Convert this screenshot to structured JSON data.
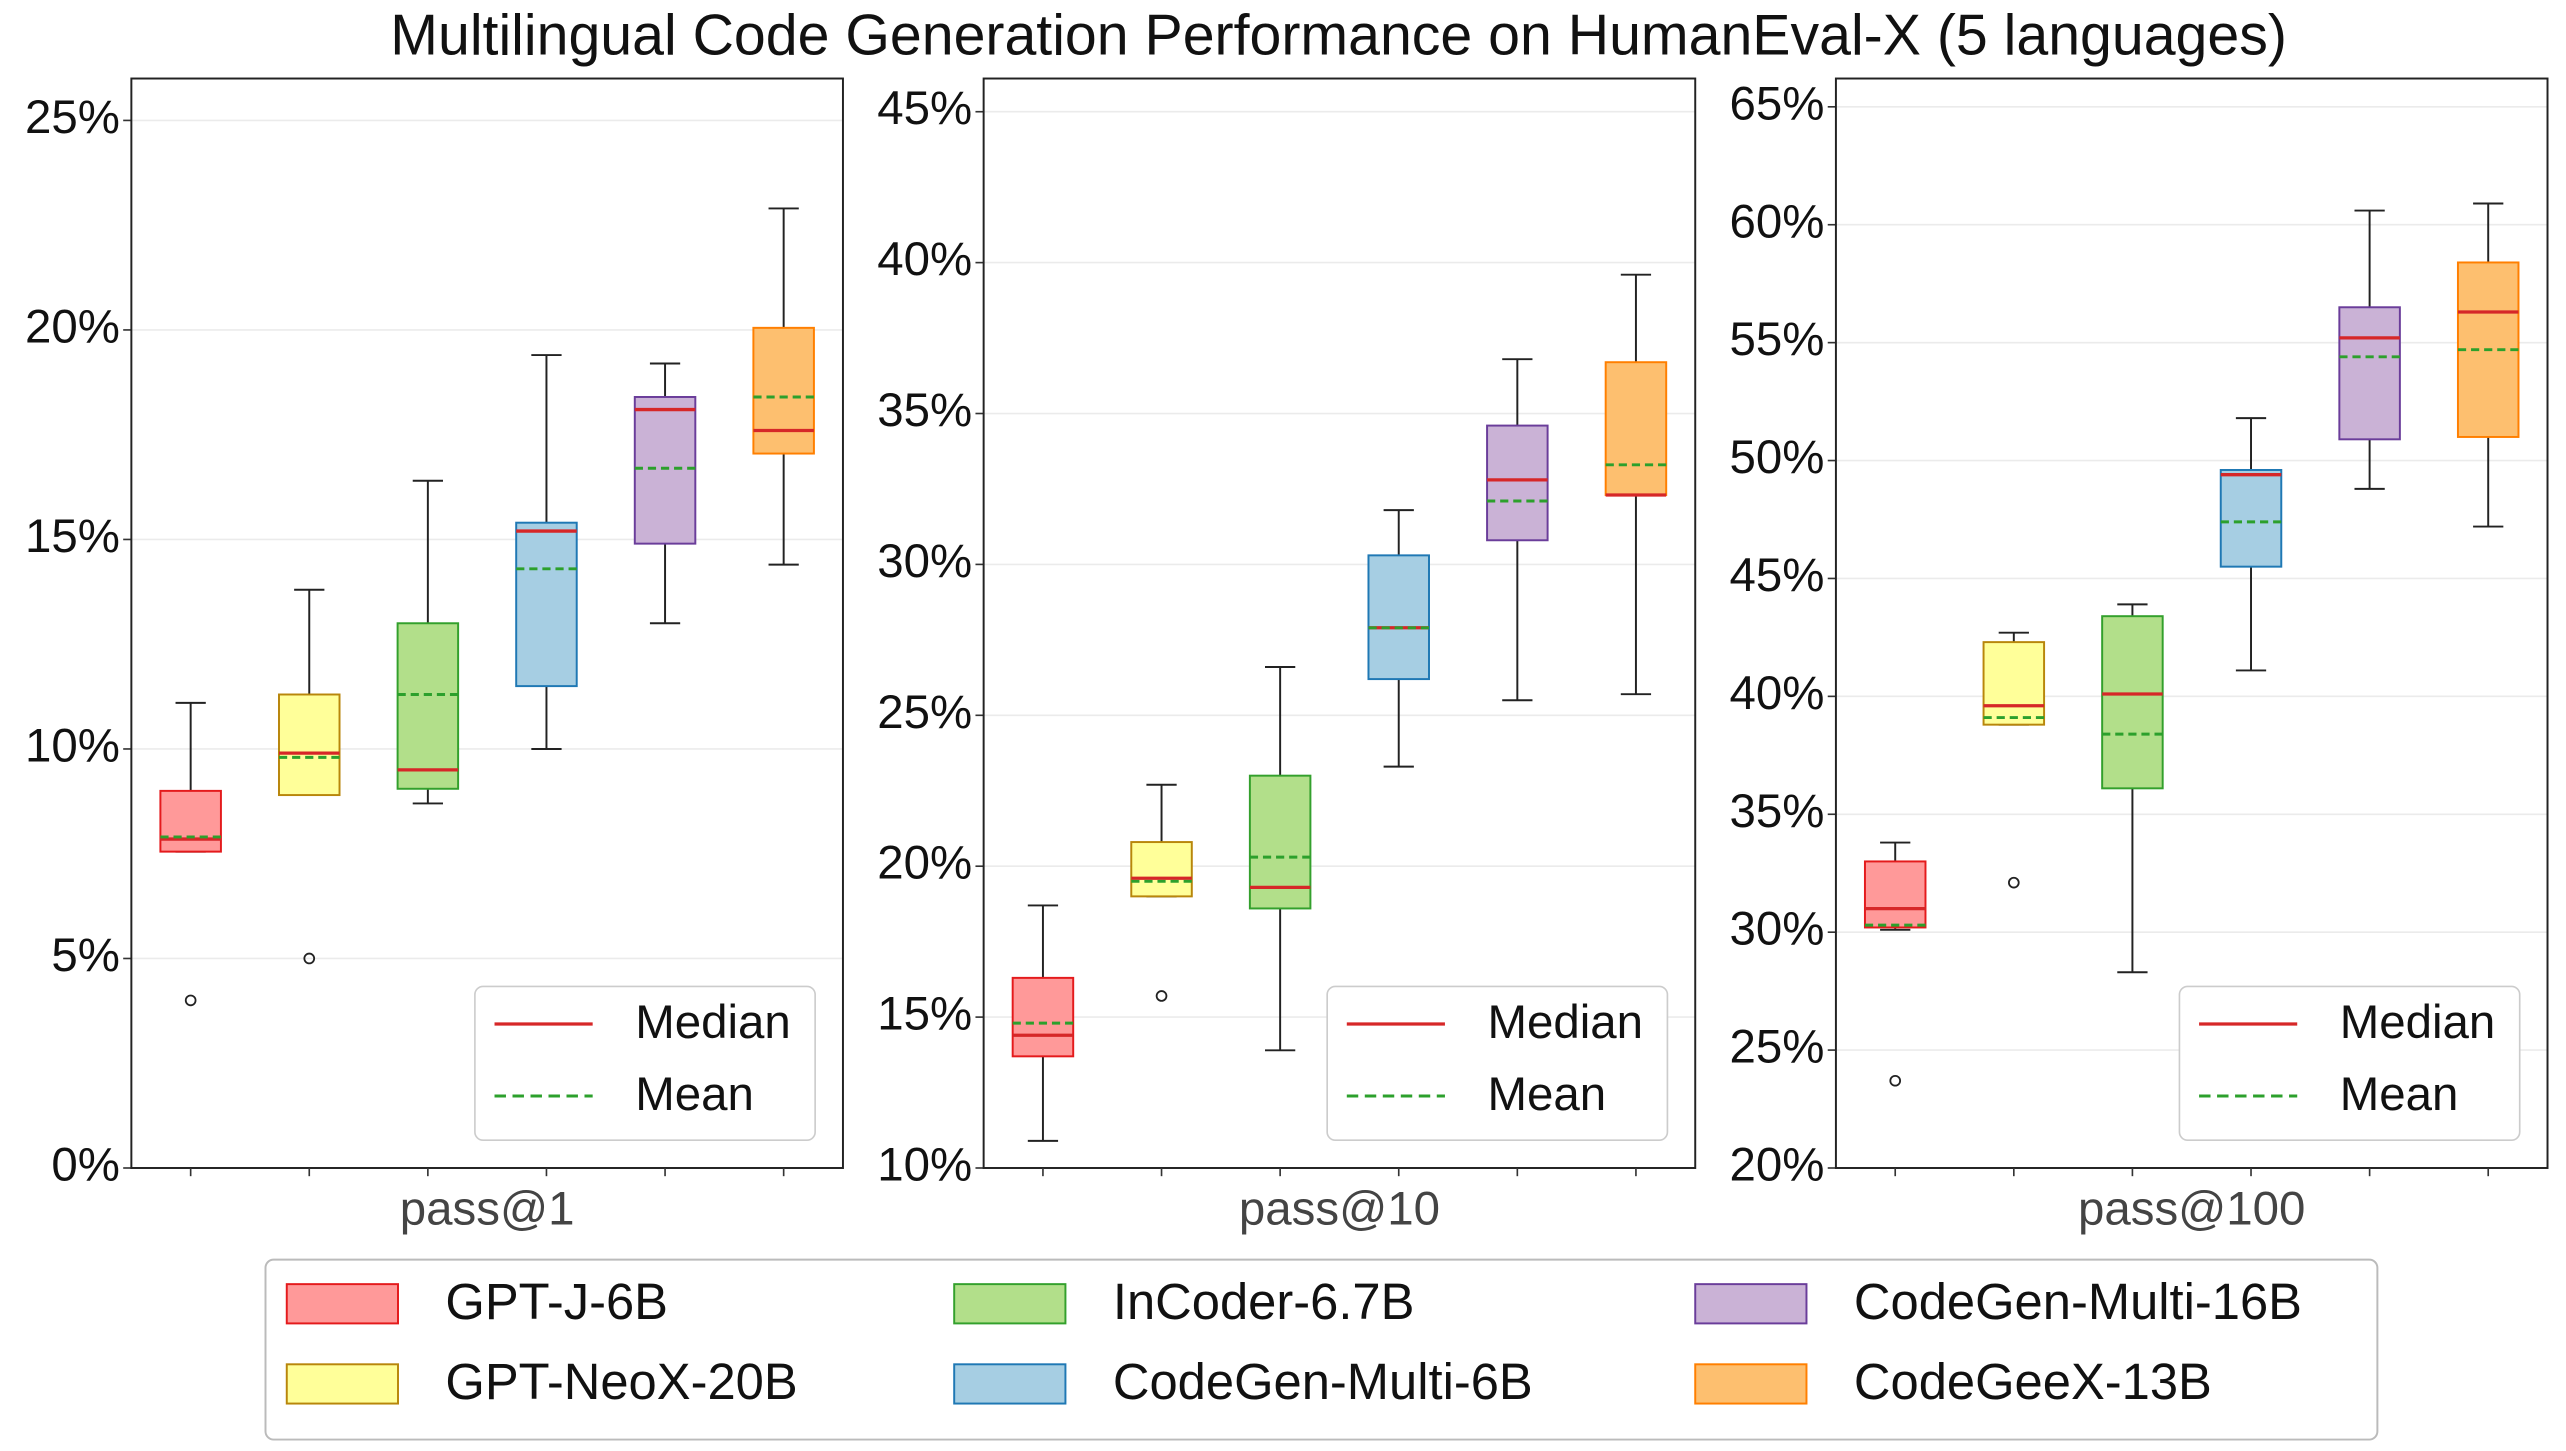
{
  "title": "Multilingual Code Generation Performance on HumanEval-X (5 languages)",
  "series": [
    {
      "name": "GPT-J-6B",
      "color": "#ff9999",
      "edge": "#e41a1c"
    },
    {
      "name": "GPT-NeoX-20B",
      "color": "#ffff99",
      "edge": "#b8860b"
    },
    {
      "name": "InCoder-6.7B",
      "color": "#b2df8a",
      "edge": "#33a02c"
    },
    {
      "name": "CodeGen-Multi-6B",
      "color": "#a6cee3",
      "edge": "#1f78b4"
    },
    {
      "name": "CodeGen-Multi-16B",
      "color": "#cab2d6",
      "edge": "#6a3d9a"
    },
    {
      "name": "CodeGeeX-13B",
      "color": "#fdbf6f",
      "edge": "#ff7f00"
    }
  ],
  "median_color": "#d62728",
  "mean_color": "#2ca02c",
  "chart_data": [
    {
      "type": "box",
      "xlabel": "pass@1",
      "legend_labels": [
        "Median",
        "Mean"
      ],
      "legend": "lower right",
      "grid": true,
      "ylim": [
        0,
        26
      ],
      "yticks": [
        {
          "value": 0,
          "label": "0%"
        },
        {
          "value": 5,
          "label": "5%"
        },
        {
          "value": 10,
          "label": "10%"
        },
        {
          "value": 15,
          "label": "15%"
        },
        {
          "value": 20,
          "label": "20%"
        },
        {
          "value": 25,
          "label": "25%"
        }
      ],
      "boxes": [
        {
          "whislo": 7.55,
          "q1": 7.55,
          "median": 7.85,
          "mean": 7.9,
          "q3": 9.0,
          "whishi": 11.1,
          "fliers": [
            4.0
          ]
        },
        {
          "whislo": 8.9,
          "q1": 8.9,
          "median": 9.9,
          "mean": 9.8,
          "q3": 11.3,
          "whishi": 13.8,
          "fliers": [
            5.0
          ]
        },
        {
          "whislo": 8.7,
          "q1": 9.05,
          "median": 9.5,
          "mean": 11.3,
          "q3": 13.0,
          "whishi": 16.4
        },
        {
          "whislo": 10.0,
          "q1": 11.5,
          "median": 15.2,
          "mean": 14.3,
          "q3": 15.4,
          "whishi": 19.4
        },
        {
          "whislo": 13.0,
          "q1": 14.9,
          "median": 18.1,
          "mean": 16.7,
          "q3": 18.4,
          "whishi": 19.2
        },
        {
          "whislo": 14.4,
          "q1": 17.05,
          "median": 17.6,
          "mean": 18.4,
          "q3": 20.05,
          "whishi": 22.9
        }
      ]
    },
    {
      "type": "box",
      "xlabel": "pass@10",
      "legend_labels": [
        "Median",
        "Mean"
      ],
      "legend": "lower right",
      "grid": true,
      "ylim": [
        10,
        46.1
      ],
      "yticks": [
        {
          "value": 10,
          "label": "10%"
        },
        {
          "value": 15,
          "label": "15%"
        },
        {
          "value": 20,
          "label": "20%"
        },
        {
          "value": 25,
          "label": "25%"
        },
        {
          "value": 30,
          "label": "30%"
        },
        {
          "value": 35,
          "label": "35%"
        },
        {
          "value": 40,
          "label": "40%"
        },
        {
          "value": 45,
          "label": "45%"
        }
      ],
      "boxes": [
        {
          "whislo": 10.9,
          "q1": 13.7,
          "median": 14.4,
          "mean": 14.8,
          "q3": 16.3,
          "whishi": 18.7
        },
        {
          "whislo": 19.0,
          "q1": 19.0,
          "median": 19.6,
          "mean": 19.5,
          "q3": 20.8,
          "whishi": 22.7,
          "fliers": [
            15.7
          ]
        },
        {
          "whislo": 13.9,
          "q1": 18.6,
          "median": 19.3,
          "mean": 20.3,
          "q3": 23.0,
          "whishi": 26.6
        },
        {
          "whislo": 23.3,
          "q1": 26.2,
          "median": 27.9,
          "mean": 27.9,
          "q3": 30.3,
          "whishi": 31.8
        },
        {
          "whislo": 25.5,
          "q1": 30.8,
          "median": 32.8,
          "mean": 32.1,
          "q3": 34.6,
          "whishi": 36.8
        },
        {
          "whislo": 25.7,
          "q1": 32.3,
          "median": 32.3,
          "mean": 33.3,
          "q3": 36.7,
          "whishi": 39.6
        }
      ]
    },
    {
      "type": "box",
      "xlabel": "pass@100",
      "legend_labels": [
        "Median",
        "Mean"
      ],
      "legend": "lower right",
      "grid": true,
      "ylim": [
        20,
        66.2
      ],
      "yticks": [
        {
          "value": 20,
          "label": "20%"
        },
        {
          "value": 25,
          "label": "25%"
        },
        {
          "value": 30,
          "label": "30%"
        },
        {
          "value": 35,
          "label": "35%"
        },
        {
          "value": 40,
          "label": "40%"
        },
        {
          "value": 45,
          "label": "45%"
        },
        {
          "value": 50,
          "label": "50%"
        },
        {
          "value": 55,
          "label": "55%"
        },
        {
          "value": 60,
          "label": "60%"
        },
        {
          "value": 65,
          "label": "65%"
        }
      ],
      "boxes": [
        {
          "whislo": 30.1,
          "q1": 30.2,
          "median": 31.0,
          "mean": 30.3,
          "q3": 33.0,
          "whishi": 33.8,
          "fliers": [
            23.7
          ]
        },
        {
          "whislo": 38.8,
          "q1": 38.8,
          "median": 39.6,
          "mean": 39.1,
          "q3": 42.3,
          "whishi": 42.7,
          "fliers": [
            32.1
          ]
        },
        {
          "whislo": 28.3,
          "q1": 36.1,
          "median": 40.1,
          "mean": 38.4,
          "q3": 43.4,
          "whishi": 43.9
        },
        {
          "whislo": 41.1,
          "q1": 45.5,
          "median": 49.4,
          "mean": 47.4,
          "q3": 49.6,
          "whishi": 51.8
        },
        {
          "whislo": 48.8,
          "q1": 50.9,
          "median": 55.2,
          "mean": 54.4,
          "q3": 56.5,
          "whishi": 60.6
        },
        {
          "whislo": 47.2,
          "q1": 51.0,
          "median": 56.3,
          "mean": 54.7,
          "q3": 58.4,
          "whishi": 60.9
        }
      ]
    }
  ]
}
